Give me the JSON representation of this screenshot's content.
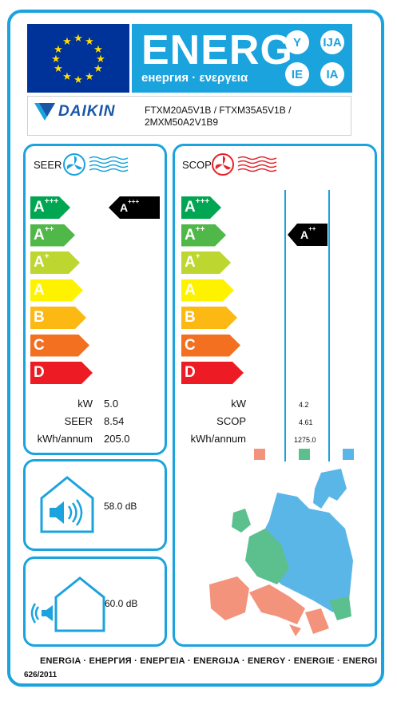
{
  "header": {
    "energy_title": "ENERG",
    "energy_subtitle": "енергия · ενεργεια",
    "suffixes": [
      "Y",
      "IJA",
      "IE",
      "IA"
    ],
    "eu_flag_icon": "eu-flag-icon",
    "colors": {
      "accent": "#1aa3dd",
      "eu_blue": "#003399",
      "eu_star": "#ffdd00"
    }
  },
  "brand": {
    "name": "DAIKIN",
    "models_line1": "FTXM20A5V1B / FTXM35A5V1B /",
    "models_line2": "2MXM50A2V1B9"
  },
  "scale_classes": [
    {
      "base": "A",
      "sup": "+++",
      "color": "#00a651"
    },
    {
      "base": "A",
      "sup": "++",
      "color": "#50b848"
    },
    {
      "base": "A",
      "sup": "+",
      "color": "#bed630"
    },
    {
      "base": "A",
      "sup": "",
      "color": "#fff200"
    },
    {
      "base": "B",
      "sup": "",
      "color": "#fcb913"
    },
    {
      "base": "C",
      "sup": "",
      "color": "#f37021"
    },
    {
      "base": "D",
      "sup": "",
      "color": "#ed1c24"
    }
  ],
  "seer": {
    "title": "SEER",
    "rating_base": "A",
    "rating_sup": "+++",
    "kw_label": "kW",
    "kw_value": "5.0",
    "seer_label": "SEER",
    "seer_value": "8.54",
    "annual_label": "kWh/annum",
    "annual_value": "205.0"
  },
  "scop": {
    "title": "SCOP",
    "rating_base": "A",
    "rating_sup": "++",
    "kw_label": "kW",
    "kw_value": "4.2",
    "scop_label": "SCOP",
    "scop_value": "4.61",
    "annual_label": "kWh/annum",
    "annual_value": "1275.0",
    "climate_zone_colors": [
      "#f4937b",
      "#5bbf8e",
      "#5bb6e8"
    ]
  },
  "noise": {
    "indoor_value": "58.0 dB",
    "outdoor_value": "60.0 dB"
  },
  "footer": {
    "energy_line": "ENERGIA · ЕНЕРГИЯ · ΕΝΕΡΓΕΙΑ · ENERGIJA · ENERGY · ENERGIE · ENERGI",
    "regulation": "626/2011"
  }
}
